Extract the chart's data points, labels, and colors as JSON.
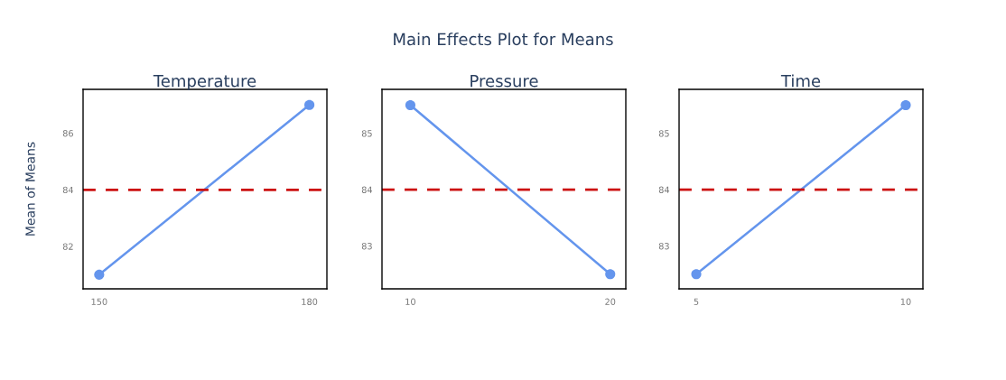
{
  "chart_data": [
    {
      "type": "line",
      "title": "Temperature",
      "ylabel": "Mean of Means",
      "annotations": [
        "Main Effects Plot for Means"
      ],
      "x": [
        150,
        180
      ],
      "series": [
        {
          "color": "#6495ed",
          "values": [
            81,
            87
          ]
        }
      ],
      "xlim": [
        147.7,
        182.5
      ],
      "xticks": [
        150,
        180
      ],
      "ylim": [
        80.5,
        87.55
      ],
      "yticks": [
        82,
        84,
        86
      ],
      "marker": "circle",
      "line_style": "solid",
      "grid": false,
      "legend": false,
      "ref_lines": [
        {
          "axis": "y",
          "value": 84,
          "color": "#cc1111",
          "line_style": "dashed"
        }
      ]
    },
    {
      "type": "line",
      "title": "Pressure",
      "x": [
        10,
        20
      ],
      "series": [
        {
          "color": "#6495ed",
          "values": [
            85.5,
            82.5
          ]
        }
      ],
      "xlim": [
        8.58,
        20.78
      ],
      "xticks": [
        10,
        20
      ],
      "ylim": [
        82.24,
        85.78
      ],
      "yticks": [
        83,
        84,
        85
      ],
      "marker": "circle",
      "line_style": "solid",
      "grid": false,
      "legend": false,
      "ref_lines": [
        {
          "axis": "y",
          "value": 84,
          "color": "#cc1111",
          "line_style": "dashed"
        }
      ]
    },
    {
      "type": "line",
      "title": "Time",
      "x": [
        5,
        10
      ],
      "series": [
        {
          "color": "#6495ed",
          "values": [
            82.5,
            85.5
          ]
        }
      ],
      "xlim": [
        4.59,
        10.41
      ],
      "xticks": [
        5,
        10
      ],
      "ylim": [
        82.24,
        85.78
      ],
      "yticks": [
        83,
        84,
        85
      ],
      "marker": "circle",
      "line_style": "solid",
      "grid": false,
      "legend": false,
      "ref_lines": [
        {
          "axis": "y",
          "value": 84,
          "color": "#cc1111",
          "line_style": "dashed"
        }
      ]
    }
  ]
}
